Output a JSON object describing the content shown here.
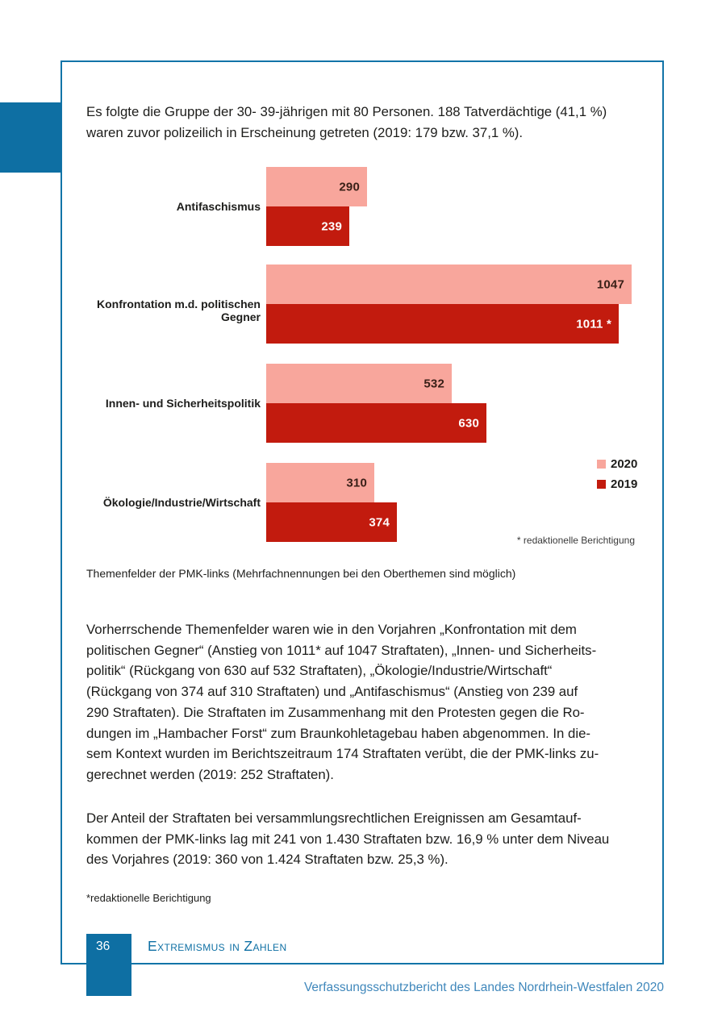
{
  "intro_text": "Es folgte die Gruppe der 30- 39-jährigen mit 80 Personen. 188 Tatverdächtige (41,1 %)\nwaren zuvor polizeilich in Erscheinung getreten (2019: 179 bzw. 37,1 %).",
  "chart_data": {
    "type": "bar",
    "orientation": "horizontal",
    "categories": [
      "Antifaschismus",
      "Konfrontation m.d. politischen Gegner",
      "Innen- und Sicherheitspolitik",
      "Ökologie/Industrie/Wirtschaft"
    ],
    "series": [
      {
        "name": "2020",
        "color": "#f8a69c",
        "values": [
          290,
          1047,
          532,
          310
        ],
        "labels": [
          "290",
          "1047",
          "532",
          "310"
        ]
      },
      {
        "name": "2019",
        "color": "#c21b0e",
        "values": [
          239,
          1011,
          630,
          374
        ],
        "labels": [
          "239",
          "1011 *",
          "630",
          "374"
        ]
      }
    ],
    "xlim": [
      0,
      1100
    ],
    "legend_position": "right",
    "grid": false,
    "footnote": "* redaktionelle Berichtigung"
  },
  "caption": "Themenfelder der PMK-links (Mehrfachnennungen bei den Oberthemen sind möglich)",
  "paragraphs": [
    "Vorherrschende Themenfelder waren wie in den Vorjahren „Konfrontation mit dem\npolitischen Gegner“ (Anstieg von 1011* auf 1047 Straftaten), „Innen- und Sicherheits-\npolitik“ (Rückgang von 630 auf 532 Straftaten), „Ökologie/Industrie/Wirtschaft“\n(Rückgang von 374 auf 310 Straftaten) und „Antifaschismus“ (Anstieg von 239 auf\n290 Straftaten). Die Straftaten im Zusammenhang mit den Protesten gegen die Ro-\ndungen im „Hambacher Forst“ zum Braunkohletagebau haben abgenommen. In die-\nsem Kontext wurden im Berichtszeitraum 174 Straftaten verübt, die der PMK-links zu-\ngerechnet werden (2019: 252 Straftaten).",
    "Der Anteil der Straftaten bei versammlungsrechtlichen Ereignissen am Gesamtauf-\nkommen der PMK-links lag mit 241 von 1.430 Straftaten bzw. 16,9 % unter dem Niveau\ndes Vorjahres (2019: 360 von 1.424 Straftaten bzw. 25,3 %)."
  ],
  "footnote": "*redaktionelle Berichtigung",
  "footer": {
    "page_number": "36",
    "section_title": "Extremismus in Zahlen",
    "report_title": "Verfassungsschutzbericht des Landes Nordrhein-Westfalen 2020"
  },
  "colors": {
    "accent_blue": "#0e6fa3",
    "frame_blue": "#1274a8",
    "heading_blue": "#0f70a4",
    "title_blue": "#3f87bb",
    "bar_2020_pink": "#f8a69c",
    "bar_2019_red": "#c21b0e",
    "text": "#1d1d1b"
  }
}
